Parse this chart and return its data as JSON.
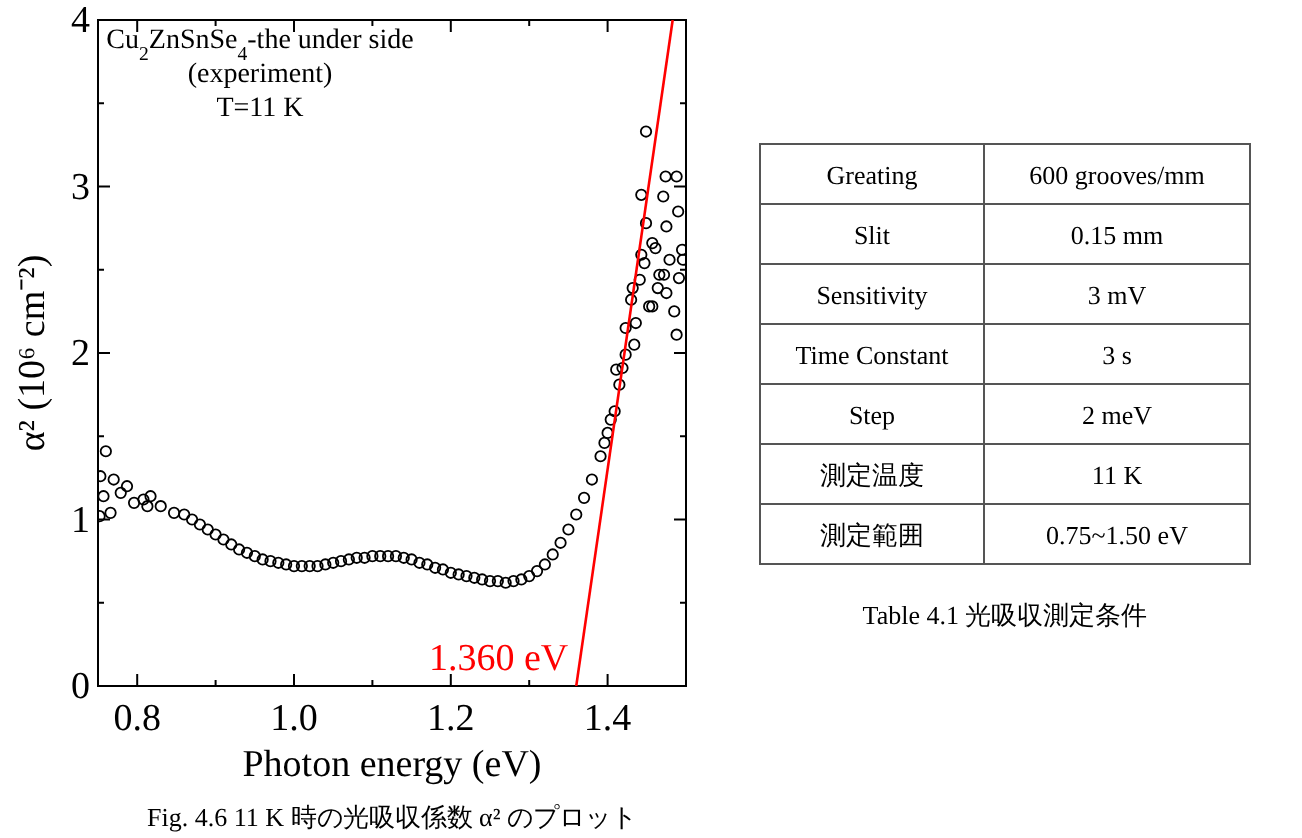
{
  "chart_data": [
    {
      "type": "scatter",
      "title": "Fig. 4.6 11 K 時の光吸収係数 α² のプロット",
      "xlabel": "Photon energy (eV)",
      "ylabel": "α² (10⁶ cm⁻²)",
      "annotations": [
        "Cu$_{2}$ZnSnSe$_{4}$-the under side",
        "(experiment)",
        "T=11 K",
        {
          "text": "1.360 eV",
          "x": 1.36,
          "y": 0
        }
      ],
      "xlim": [
        0.75,
        1.5
      ],
      "ylim": [
        0,
        4
      ],
      "xticks": [
        0.8,
        {
          "value": 0.9,
          "label": null
        },
        {
          "value": 1,
          "label": "1.0"
        },
        {
          "value": 1.1,
          "label": null
        },
        1.2,
        {
          "value": 1.3,
          "label": null
        },
        1.4
      ],
      "yticks": [
        0,
        {
          "value": 0.5,
          "label": null
        },
        1,
        {
          "value": 1.5,
          "label": null
        },
        2,
        {
          "value": 2.5,
          "label": null
        },
        3,
        {
          "value": 3.5,
          "label": null
        },
        4
      ],
      "series": [
        {
          "type": "scatter",
          "marker": "circle",
          "color": "#000000",
          "x": [
            0.752,
            0.753,
            0.757,
            0.76,
            0.766,
            0.77,
            0.779,
            0.787,
            0.796,
            0.808,
            0.813,
            0.817,
            0.83,
            0.847,
            0.86,
            0.87,
            0.88,
            0.89,
            0.9,
            0.91,
            0.92,
            0.93,
            0.94,
            0.95,
            0.96,
            0.97,
            0.98,
            0.99,
            1.0,
            1.01,
            1.02,
            1.03,
            1.04,
            1.05,
            1.06,
            1.07,
            1.08,
            1.09,
            1.1,
            1.11,
            1.12,
            1.13,
            1.14,
            1.15,
            1.16,
            1.17,
            1.18,
            1.19,
            1.2,
            1.21,
            1.22,
            1.23,
            1.24,
            1.25,
            1.26,
            1.27,
            1.28,
            1.29,
            1.3,
            1.31,
            1.32,
            1.33,
            1.34,
            1.35,
            1.36,
            1.37,
            1.38,
            1.391,
            1.396,
            1.4,
            1.404,
            1.409,
            1.411,
            1.415,
            1.419,
            1.423,
            1.423,
            1.43,
            1.432,
            1.434,
            1.436,
            1.441,
            1.443,
            1.443,
            1.447,
            1.449,
            1.449,
            1.453,
            1.457,
            1.457,
            1.461,
            1.464,
            1.466,
            1.471,
            1.472,
            1.474,
            1.475,
            1.475,
            1.479,
            1.485,
            1.488,
            1.488,
            1.49,
            1.491,
            1.495,
            1.496
          ],
          "values": [
            1.02,
            1.26,
            1.14,
            1.41,
            1.04,
            1.24,
            1.16,
            1.2,
            1.1,
            1.12,
            1.08,
            1.14,
            1.08,
            1.04,
            1.03,
            1.0,
            0.97,
            0.94,
            0.91,
            0.88,
            0.85,
            0.82,
            0.8,
            0.78,
            0.76,
            0.75,
            0.74,
            0.73,
            0.72,
            0.72,
            0.72,
            0.72,
            0.73,
            0.74,
            0.75,
            0.76,
            0.77,
            0.77,
            0.78,
            0.78,
            0.78,
            0.78,
            0.77,
            0.76,
            0.74,
            0.73,
            0.71,
            0.7,
            0.68,
            0.67,
            0.66,
            0.65,
            0.64,
            0.63,
            0.63,
            0.62,
            0.63,
            0.64,
            0.66,
            0.69,
            0.73,
            0.79,
            0.86,
            0.94,
            1.03,
            1.13,
            1.24,
            1.38,
            1.46,
            1.52,
            1.6,
            1.65,
            1.9,
            1.81,
            1.91,
            1.99,
            2.15,
            2.32,
            2.39,
            2.05,
            2.18,
            2.44,
            2.59,
            2.95,
            2.54,
            2.78,
            3.33,
            2.28,
            2.28,
            2.66,
            2.63,
            2.39,
            2.47,
            2.94,
            2.47,
            3.06,
            2.76,
            2.36,
            2.56,
            2.25,
            3.06,
            2.11,
            2.85,
            2.45,
            2.62,
            2.56
          ]
        },
        {
          "type": "line",
          "color": "#ff0000",
          "x": [
            1.36,
            1.483
          ],
          "values": [
            0,
            4
          ]
        }
      ]
    },
    {
      "type": "other",
      "title": "Table 4.1  光吸収測定条件",
      "annotations": [
        "Greating",
        "600 grooves/mm",
        "Slit",
        "0.15 mm",
        "Sensitivity",
        "3 mV",
        "Time Constant",
        "3 s",
        "Step",
        "2 meV",
        "測定温度",
        "11 K",
        "測定範囲",
        "0.75~1.50 eV"
      ]
    }
  ]
}
